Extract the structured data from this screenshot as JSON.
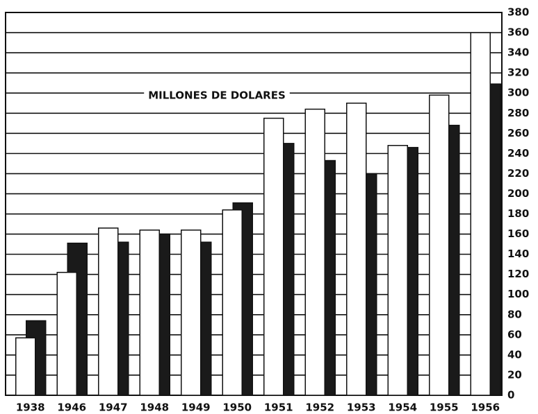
{
  "chart_data": {
    "type": "bar",
    "annotation": "MILLONES DE DOLARES",
    "categories": [
      "1938",
      "1946",
      "1947",
      "1948",
      "1949",
      "1950",
      "1951",
      "1952",
      "1953",
      "1954",
      "1955",
      "1956"
    ],
    "series": [
      {
        "color": "#ffffff",
        "values": [
          57,
          122,
          166,
          164,
          164,
          184,
          275,
          284,
          290,
          248,
          298,
          360
        ]
      },
      {
        "color": "#1a1a1a",
        "values": [
          74,
          151,
          152,
          160,
          152,
          191,
          250,
          233,
          220,
          246,
          268,
          309
        ]
      }
    ],
    "ylim": [
      0,
      380
    ],
    "yticks": [
      0,
      20,
      40,
      60,
      80,
      100,
      120,
      140,
      160,
      180,
      200,
      220,
      240,
      260,
      280,
      300,
      320,
      340,
      360,
      380
    ],
    "grid": true
  }
}
